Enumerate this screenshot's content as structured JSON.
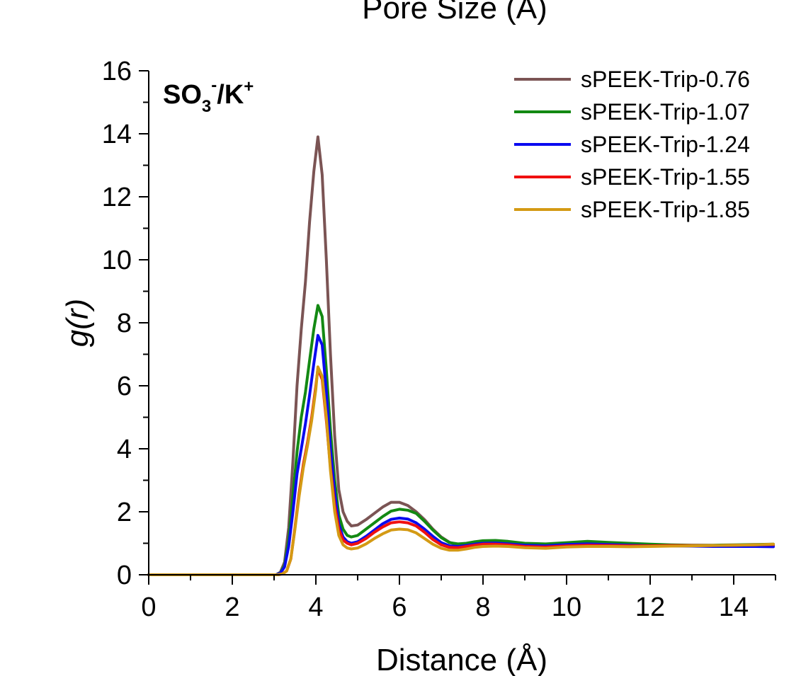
{
  "chart_data": {
    "type": "line",
    "top_title": "Pore Size (Å)",
    "xlabel": "Distance (Å)",
    "ylabel": "g(r)",
    "xlim": [
      0,
      15
    ],
    "ylim": [
      0,
      16
    ],
    "x_ticks": [
      0,
      2,
      4,
      6,
      8,
      10,
      12,
      14
    ],
    "y_ticks": [
      0,
      2,
      4,
      6,
      8,
      10,
      12,
      14,
      16
    ],
    "grid": false,
    "legend_position": "top-right",
    "annotation": {
      "base": "SO",
      "sub": "3",
      "sup1": "-",
      "mid": "/K",
      "sup2": "+"
    },
    "series": [
      {
        "name": "sPEEK-Trip-0.76",
        "color": "#7b5454",
        "points": [
          [
            0,
            0
          ],
          [
            3.05,
            0
          ],
          [
            3.15,
            0.08
          ],
          [
            3.25,
            0.4
          ],
          [
            3.35,
            1.5
          ],
          [
            3.45,
            3.6
          ],
          [
            3.55,
            6.0
          ],
          [
            3.65,
            7.8
          ],
          [
            3.75,
            9.3
          ],
          [
            3.85,
            11.2
          ],
          [
            3.95,
            12.8
          ],
          [
            4.05,
            13.9
          ],
          [
            4.15,
            12.7
          ],
          [
            4.25,
            10.0
          ],
          [
            4.35,
            7.0
          ],
          [
            4.45,
            4.4
          ],
          [
            4.55,
            2.7
          ],
          [
            4.65,
            2.0
          ],
          [
            4.75,
            1.7
          ],
          [
            4.85,
            1.55
          ],
          [
            5.0,
            1.58
          ],
          [
            5.2,
            1.75
          ],
          [
            5.4,
            1.95
          ],
          [
            5.6,
            2.15
          ],
          [
            5.8,
            2.3
          ],
          [
            6.0,
            2.3
          ],
          [
            6.2,
            2.2
          ],
          [
            6.4,
            2.0
          ],
          [
            6.6,
            1.75
          ],
          [
            6.8,
            1.45
          ],
          [
            7.0,
            1.2
          ],
          [
            7.2,
            1.03
          ],
          [
            7.4,
            0.95
          ],
          [
            7.6,
            0.97
          ],
          [
            7.8,
            1.02
          ],
          [
            8.0,
            1.06
          ],
          [
            8.3,
            1.06
          ],
          [
            8.6,
            1.02
          ],
          [
            9.0,
            0.95
          ],
          [
            9.5,
            0.93
          ],
          [
            10.0,
            0.97
          ],
          [
            10.5,
            1.02
          ],
          [
            11.0,
            0.98
          ],
          [
            11.5,
            0.95
          ],
          [
            12.0,
            0.93
          ],
          [
            12.5,
            0.92
          ],
          [
            13.0,
            0.92
          ],
          [
            13.5,
            0.93
          ],
          [
            14.0,
            0.93
          ],
          [
            14.5,
            0.93
          ],
          [
            14.95,
            0.92
          ]
        ]
      },
      {
        "name": "sPEEK-Trip-1.07",
        "color": "#138913",
        "points": [
          [
            0,
            0
          ],
          [
            3.05,
            0
          ],
          [
            3.15,
            0.06
          ],
          [
            3.25,
            0.3
          ],
          [
            3.35,
            1.1
          ],
          [
            3.45,
            2.5
          ],
          [
            3.55,
            3.9
          ],
          [
            3.65,
            5.0
          ],
          [
            3.75,
            5.8
          ],
          [
            3.85,
            6.8
          ],
          [
            3.95,
            7.8
          ],
          [
            4.05,
            8.55
          ],
          [
            4.15,
            8.2
          ],
          [
            4.25,
            6.5
          ],
          [
            4.35,
            4.6
          ],
          [
            4.45,
            3.0
          ],
          [
            4.55,
            1.9
          ],
          [
            4.65,
            1.45
          ],
          [
            4.75,
            1.25
          ],
          [
            4.85,
            1.2
          ],
          [
            5.0,
            1.25
          ],
          [
            5.2,
            1.45
          ],
          [
            5.4,
            1.65
          ],
          [
            5.6,
            1.85
          ],
          [
            5.8,
            2.02
          ],
          [
            6.0,
            2.08
          ],
          [
            6.2,
            2.05
          ],
          [
            6.4,
            1.95
          ],
          [
            6.6,
            1.7
          ],
          [
            6.8,
            1.42
          ],
          [
            7.0,
            1.18
          ],
          [
            7.2,
            1.02
          ],
          [
            7.4,
            0.98
          ],
          [
            7.6,
            1.0
          ],
          [
            7.8,
            1.05
          ],
          [
            8.0,
            1.08
          ],
          [
            8.3,
            1.09
          ],
          [
            8.6,
            1.06
          ],
          [
            9.0,
            1.0
          ],
          [
            9.5,
            0.98
          ],
          [
            10.0,
            1.02
          ],
          [
            10.5,
            1.06
          ],
          [
            11.0,
            1.03
          ],
          [
            11.5,
            1.0
          ],
          [
            12.0,
            0.97
          ],
          [
            12.5,
            0.95
          ],
          [
            13.0,
            0.94
          ],
          [
            13.5,
            0.94
          ],
          [
            14.0,
            0.95
          ],
          [
            14.5,
            0.96
          ],
          [
            14.95,
            0.97
          ]
        ]
      },
      {
        "name": "sPEEK-Trip-1.24",
        "color": "#0a0af0",
        "points": [
          [
            0,
            0
          ],
          [
            3.05,
            0
          ],
          [
            3.15,
            0.05
          ],
          [
            3.25,
            0.25
          ],
          [
            3.35,
            0.9
          ],
          [
            3.45,
            2.0
          ],
          [
            3.55,
            3.2
          ],
          [
            3.65,
            4.0
          ],
          [
            3.75,
            4.8
          ],
          [
            3.85,
            5.7
          ],
          [
            3.95,
            6.7
          ],
          [
            4.05,
            7.6
          ],
          [
            4.15,
            7.3
          ],
          [
            4.25,
            5.8
          ],
          [
            4.35,
            4.0
          ],
          [
            4.45,
            2.6
          ],
          [
            4.55,
            1.6
          ],
          [
            4.65,
            1.2
          ],
          [
            4.75,
            1.05
          ],
          [
            4.85,
            1.0
          ],
          [
            5.0,
            1.05
          ],
          [
            5.2,
            1.22
          ],
          [
            5.4,
            1.42
          ],
          [
            5.6,
            1.62
          ],
          [
            5.8,
            1.76
          ],
          [
            6.0,
            1.8
          ],
          [
            6.2,
            1.77
          ],
          [
            6.4,
            1.65
          ],
          [
            6.6,
            1.45
          ],
          [
            6.8,
            1.22
          ],
          [
            7.0,
            1.02
          ],
          [
            7.2,
            0.92
          ],
          [
            7.4,
            0.9
          ],
          [
            7.6,
            0.93
          ],
          [
            7.8,
            0.97
          ],
          [
            8.0,
            1.0
          ],
          [
            8.3,
            1.01
          ],
          [
            8.6,
            0.98
          ],
          [
            9.0,
            0.94
          ],
          [
            9.5,
            0.92
          ],
          [
            10.0,
            0.96
          ],
          [
            10.5,
            0.98
          ],
          [
            11.0,
            0.96
          ],
          [
            11.5,
            0.94
          ],
          [
            12.0,
            0.92
          ],
          [
            12.5,
            0.92
          ],
          [
            13.0,
            0.91
          ],
          [
            13.5,
            0.9
          ],
          [
            14.0,
            0.9
          ],
          [
            14.5,
            0.9
          ],
          [
            14.95,
            0.89
          ]
        ]
      },
      {
        "name": "sPEEK-Trip-1.55",
        "color": "#f01010",
        "points": [
          [
            0,
            0
          ],
          [
            3.1,
            0
          ],
          [
            3.2,
            0.03
          ],
          [
            3.3,
            0.12
          ],
          [
            3.4,
            0.5
          ],
          [
            3.5,
            1.5
          ],
          [
            3.6,
            2.6
          ],
          [
            3.7,
            3.5
          ],
          [
            3.8,
            4.2
          ],
          [
            3.9,
            5.0
          ],
          [
            4.0,
            6.0
          ],
          [
            4.05,
            6.55
          ],
          [
            4.15,
            6.2
          ],
          [
            4.25,
            4.9
          ],
          [
            4.35,
            3.4
          ],
          [
            4.45,
            2.2
          ],
          [
            4.55,
            1.45
          ],
          [
            4.65,
            1.1
          ],
          [
            4.75,
            1.0
          ],
          [
            4.85,
            0.95
          ],
          [
            5.0,
            1.0
          ],
          [
            5.2,
            1.15
          ],
          [
            5.4,
            1.35
          ],
          [
            5.6,
            1.52
          ],
          [
            5.8,
            1.65
          ],
          [
            6.0,
            1.68
          ],
          [
            6.2,
            1.65
          ],
          [
            6.4,
            1.55
          ],
          [
            6.6,
            1.35
          ],
          [
            6.8,
            1.12
          ],
          [
            7.0,
            0.95
          ],
          [
            7.2,
            0.87
          ],
          [
            7.4,
            0.86
          ],
          [
            7.6,
            0.9
          ],
          [
            7.8,
            0.94
          ],
          [
            8.0,
            0.97
          ],
          [
            8.3,
            0.97
          ],
          [
            8.6,
            0.95
          ],
          [
            9.0,
            0.9
          ],
          [
            9.5,
            0.88
          ],
          [
            10.0,
            0.92
          ],
          [
            10.5,
            0.94
          ],
          [
            11.0,
            0.93
          ],
          [
            11.5,
            0.92
          ],
          [
            12.0,
            0.92
          ],
          [
            12.5,
            0.93
          ],
          [
            13.0,
            0.93
          ],
          [
            13.5,
            0.93
          ],
          [
            14.0,
            0.94
          ],
          [
            14.5,
            0.95
          ],
          [
            14.95,
            0.96
          ]
        ]
      },
      {
        "name": "sPEEK-Trip-1.85",
        "color": "#d49a14",
        "points": [
          [
            0,
            0
          ],
          [
            3.1,
            0
          ],
          [
            3.2,
            0.03
          ],
          [
            3.3,
            0.12
          ],
          [
            3.4,
            0.5
          ],
          [
            3.5,
            1.45
          ],
          [
            3.6,
            2.5
          ],
          [
            3.7,
            3.4
          ],
          [
            3.8,
            4.1
          ],
          [
            3.9,
            4.9
          ],
          [
            4.0,
            5.9
          ],
          [
            4.05,
            6.6
          ],
          [
            4.15,
            6.3
          ],
          [
            4.25,
            5.0
          ],
          [
            4.35,
            3.3
          ],
          [
            4.45,
            2.0
          ],
          [
            4.55,
            1.25
          ],
          [
            4.65,
            0.95
          ],
          [
            4.75,
            0.85
          ],
          [
            4.85,
            0.82
          ],
          [
            5.0,
            0.85
          ],
          [
            5.2,
            0.98
          ],
          [
            5.4,
            1.15
          ],
          [
            5.6,
            1.3
          ],
          [
            5.8,
            1.42
          ],
          [
            6.0,
            1.45
          ],
          [
            6.2,
            1.43
          ],
          [
            6.4,
            1.33
          ],
          [
            6.6,
            1.15
          ],
          [
            6.8,
            0.97
          ],
          [
            7.0,
            0.84
          ],
          [
            7.2,
            0.78
          ],
          [
            7.4,
            0.78
          ],
          [
            7.6,
            0.82
          ],
          [
            7.8,
            0.87
          ],
          [
            8.0,
            0.9
          ],
          [
            8.3,
            0.91
          ],
          [
            8.6,
            0.9
          ],
          [
            9.0,
            0.86
          ],
          [
            9.5,
            0.84
          ],
          [
            10.0,
            0.88
          ],
          [
            10.5,
            0.9
          ],
          [
            11.0,
            0.9
          ],
          [
            11.5,
            0.89
          ],
          [
            12.0,
            0.9
          ],
          [
            12.5,
            0.91
          ],
          [
            13.0,
            0.92
          ],
          [
            13.5,
            0.93
          ],
          [
            14.0,
            0.94
          ],
          [
            14.5,
            0.95
          ],
          [
            14.95,
            0.97
          ]
        ]
      }
    ]
  }
}
